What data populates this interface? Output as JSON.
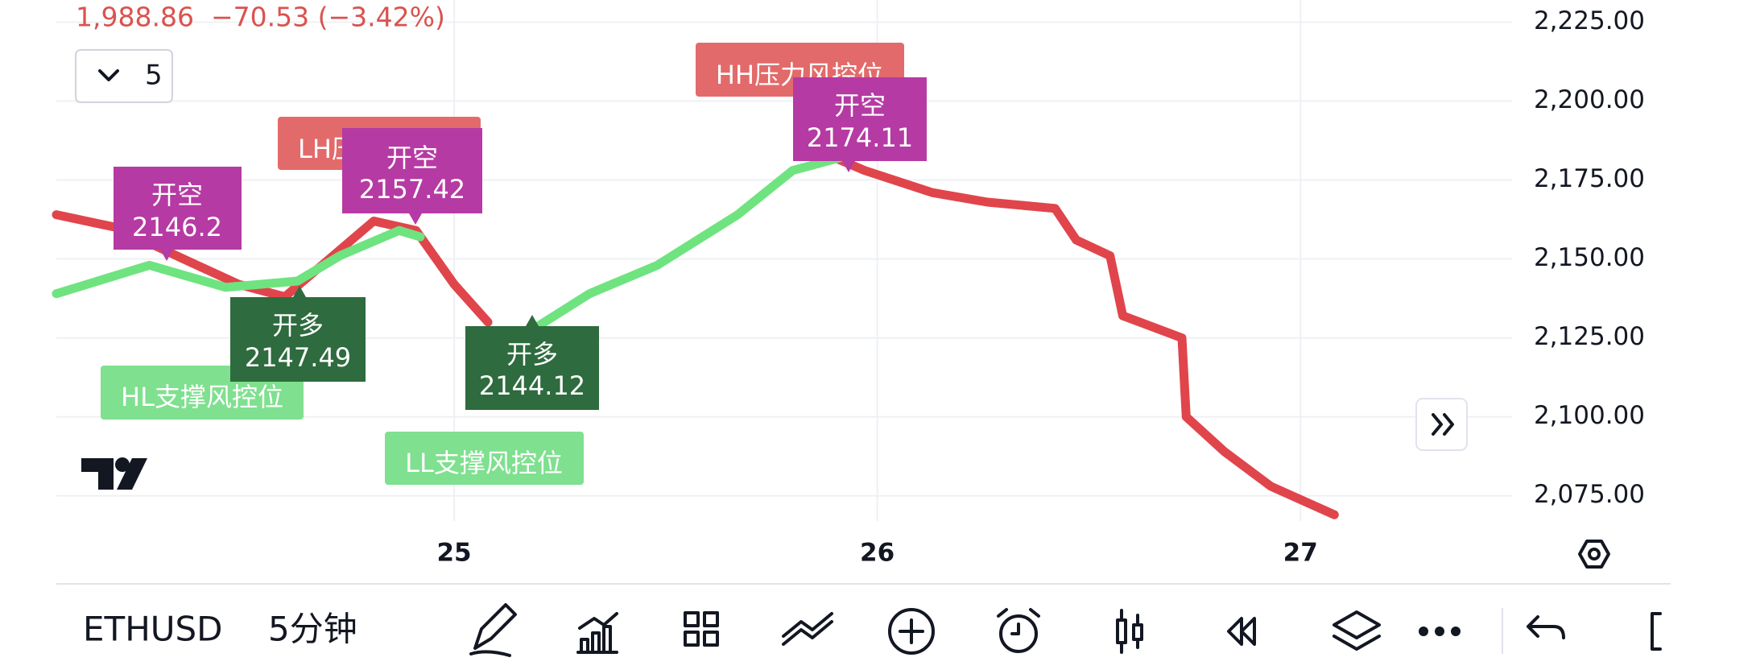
{
  "header": {
    "last": "1,988.86",
    "change": "−70.53 (−3.42%)",
    "interval_count": "5"
  },
  "toolbar": {
    "symbol": "ETHUSD",
    "interval": "5分钟"
  },
  "chart_data": {
    "type": "line",
    "xlim": [
      24.06,
      27.5
    ],
    "ylim": [
      2067,
      2232
    ],
    "xticks": [
      25,
      26,
      27
    ],
    "yticks": [
      {
        "value": 2225,
        "label": "2,225.00"
      },
      {
        "value": 2200,
        "label": "2,200.00"
      },
      {
        "value": 2175,
        "label": "2,175.00"
      },
      {
        "value": 2150,
        "label": "2,150.00"
      },
      {
        "value": 2125,
        "label": "2,125.00"
      },
      {
        "value": 2100,
        "label": "2,100.00"
      },
      {
        "value": 2075,
        "label": "2,075.00"
      }
    ],
    "grid": true,
    "series": [
      {
        "color": "#e0454b",
        "x": [
          24.06,
          24.2,
          24.36,
          24.49,
          24.6,
          24.81,
          24.91,
          25.0,
          25.08,
          25.4,
          25.83,
          25.97,
          26.13,
          26.26,
          26.42,
          26.47,
          26.55,
          26.58,
          26.72,
          26.73,
          26.82,
          26.93,
          27.08
        ],
        "values": [
          2164,
          2160,
          2150,
          2142,
          2138,
          2162,
          2159,
          2142,
          2130,
          null,
          2186,
          2178,
          2171,
          2168,
          2166,
          2156,
          2151,
          2132,
          2125,
          2100,
          2089,
          2078,
          2069
        ]
      },
      {
        "color": "#6fe37f",
        "x": [
          24.06,
          24.28,
          24.46,
          24.63,
          24.73,
          24.87,
          24.92,
          25.05,
          25.19,
          25.32,
          25.48,
          25.67,
          25.8,
          25.91
        ],
        "values": [
          2139,
          2148,
          2141,
          2143,
          2151,
          2159,
          2157,
          null,
          2128,
          2139,
          2148,
          2164,
          2178,
          2182
        ]
      }
    ],
    "signals": [
      {
        "text": "开空",
        "price": 2146.2
      },
      {
        "text": "开空",
        "price": 2157.42
      },
      {
        "text": "开空",
        "price": 2174.11
      },
      {
        "text": "开多",
        "price": 2147.49
      },
      {
        "text": "开多",
        "price": 2144.12
      }
    ],
    "zones": [
      "LH压力风控位",
      "HH压力风控位",
      "HL支撑风控位",
      "LL支撑风控位"
    ]
  }
}
